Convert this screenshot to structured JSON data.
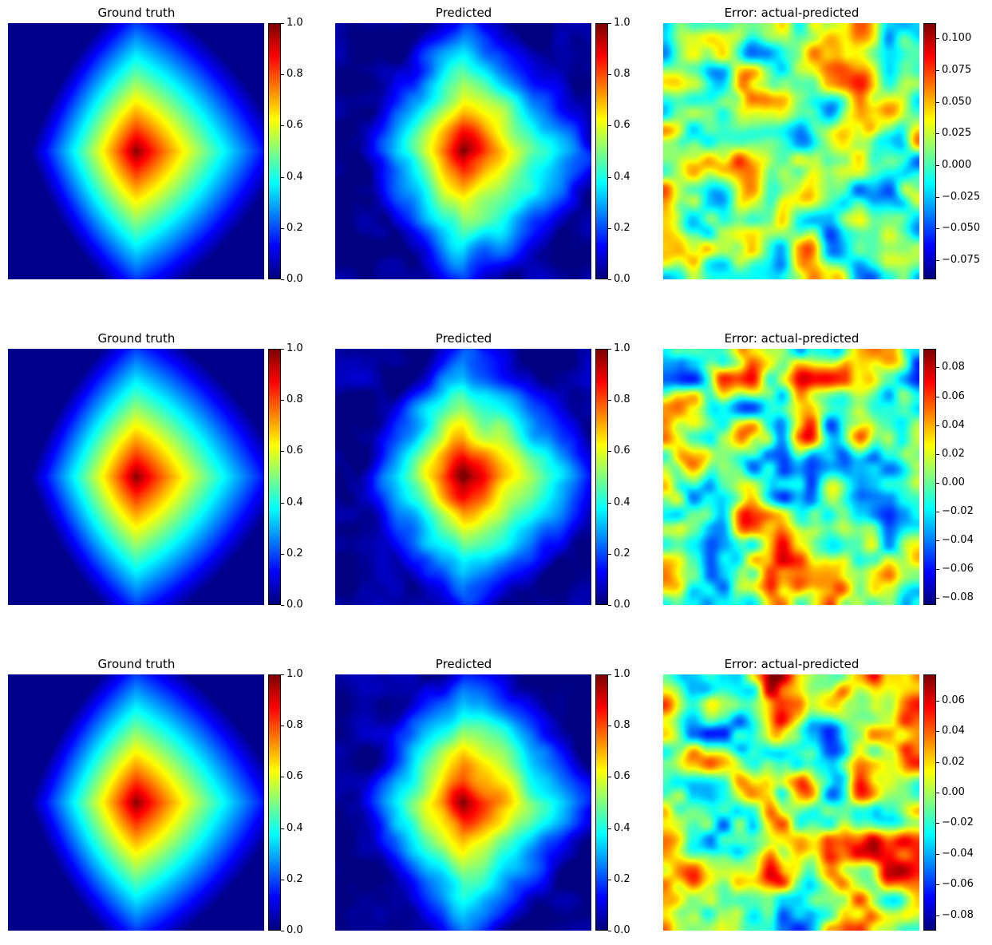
{
  "chart_data": [
    {
      "type": "heatmap",
      "title": "Ground truth",
      "colormap": "jet",
      "clim": [
        0,
        1
      ],
      "field": "truth",
      "row": 1,
      "col": 1,
      "colorbar_ticks": [
        "0.0",
        "0.2",
        "0.4",
        "0.6",
        "0.8",
        "1.0"
      ],
      "colorbar_values": [
        0,
        0.2,
        0.4,
        0.6,
        0.8,
        1.0
      ],
      "axes": "off"
    },
    {
      "type": "heatmap",
      "title": "Predicted",
      "colormap": "jet",
      "clim": [
        0,
        1
      ],
      "field": "pred",
      "seed": 11,
      "row": 1,
      "col": 2,
      "colorbar_ticks": [
        "0.0",
        "0.2",
        "0.4",
        "0.6",
        "0.8",
        "1.0"
      ],
      "colorbar_values": [
        0,
        0.2,
        0.4,
        0.6,
        0.8,
        1.0
      ],
      "axes": "off"
    },
    {
      "type": "heatmap",
      "title": "Error: actual-predicted",
      "colormap": "jet",
      "clim": [
        -0.09,
        0.112
      ],
      "field": "error",
      "seed": 11,
      "row": 1,
      "col": 3,
      "colorbar_ticks": [
        "0.100",
        "0.075",
        "0.050",
        "0.025",
        "0.000",
        "−0.025",
        "−0.050",
        "−0.075"
      ],
      "colorbar_values": [
        0.1,
        0.075,
        0.05,
        0.025,
        0.0,
        -0.025,
        -0.05,
        -0.075
      ],
      "axes": "off"
    },
    {
      "type": "heatmap",
      "title": "Ground truth",
      "colormap": "jet",
      "clim": [
        0,
        1
      ],
      "field": "truth",
      "row": 2,
      "col": 1,
      "colorbar_ticks": [
        "0.0",
        "0.2",
        "0.4",
        "0.6",
        "0.8",
        "1.0"
      ],
      "colorbar_values": [
        0,
        0.2,
        0.4,
        0.6,
        0.8,
        1.0
      ],
      "axes": "off"
    },
    {
      "type": "heatmap",
      "title": "Predicted",
      "colormap": "jet",
      "clim": [
        0,
        1
      ],
      "field": "pred",
      "seed": 23,
      "row": 2,
      "col": 2,
      "colorbar_ticks": [
        "0.0",
        "0.2",
        "0.4",
        "0.6",
        "0.8",
        "1.0"
      ],
      "colorbar_values": [
        0,
        0.2,
        0.4,
        0.6,
        0.8,
        1.0
      ],
      "axes": "off"
    },
    {
      "type": "heatmap",
      "title": "Error: actual-predicted",
      "colormap": "jet",
      "clim": [
        -0.085,
        0.093
      ],
      "field": "error",
      "seed": 23,
      "row": 2,
      "col": 3,
      "colorbar_ticks": [
        "0.08",
        "0.06",
        "0.04",
        "0.02",
        "0.00",
        "−0.02",
        "−0.04",
        "−0.06",
        "−0.08"
      ],
      "colorbar_values": [
        0.08,
        0.06,
        0.04,
        0.02,
        0.0,
        -0.02,
        -0.04,
        -0.06,
        -0.08
      ],
      "axes": "off"
    },
    {
      "type": "heatmap",
      "title": "Ground truth",
      "colormap": "jet",
      "clim": [
        0,
        1
      ],
      "field": "truth",
      "row": 3,
      "col": 1,
      "colorbar_ticks": [
        "0.0",
        "0.2",
        "0.4",
        "0.6",
        "0.8",
        "1.0"
      ],
      "colorbar_values": [
        0,
        0.2,
        0.4,
        0.6,
        0.8,
        1.0
      ],
      "axes": "off"
    },
    {
      "type": "heatmap",
      "title": "Predicted",
      "colormap": "jet",
      "clim": [
        0,
        1
      ],
      "field": "pred",
      "seed": 37,
      "row": 3,
      "col": 2,
      "colorbar_ticks": [
        "0.0",
        "0.2",
        "0.4",
        "0.6",
        "0.8",
        "1.0"
      ],
      "colorbar_values": [
        0,
        0.2,
        0.4,
        0.6,
        0.8,
        1.0
      ],
      "axes": "off"
    },
    {
      "type": "heatmap",
      "title": "Error: actual-predicted",
      "colormap": "jet",
      "clim": [
        -0.09,
        0.077
      ],
      "field": "error",
      "seed": 37,
      "row": 3,
      "col": 3,
      "colorbar_ticks": [
        "0.06",
        "0.04",
        "0.02",
        "0.00",
        "−0.02",
        "−0.04",
        "−0.06",
        "−0.08"
      ],
      "colorbar_values": [
        0.06,
        0.04,
        0.02,
        0.0,
        -0.02,
        -0.04,
        -0.06,
        -0.08
      ],
      "axes": "off"
    }
  ]
}
